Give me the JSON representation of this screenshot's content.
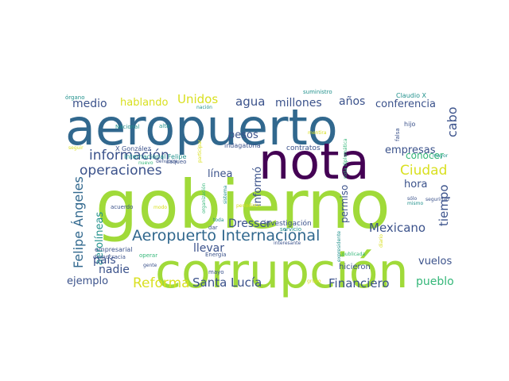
{
  "background": "#ffffff",
  "palette": {
    "dark_purple": "#440154",
    "indigo": "#3b528b",
    "blue": "#31688e",
    "teal": "#21918c",
    "green": "#35b779",
    "lime": "#90d743",
    "yellow": "#d9e021"
  },
  "words": [
    {
      "text": "gobierno",
      "color": "#a0da39"
    },
    {
      "text": "aeropuerto",
      "color": "#31688e"
    },
    {
      "text": "corrupción",
      "color": "#a0da39"
    },
    {
      "text": "nota",
      "color": "#440154"
    },
    {
      "text": "Aeropuerto Internacional",
      "color": "#31688e"
    },
    {
      "text": "información",
      "color": "#3b528b"
    },
    {
      "text": "operaciones",
      "color": "#3b528b"
    },
    {
      "text": "Felipe Ángeles",
      "color": "#31688e"
    },
    {
      "text": "aerolíneas",
      "color": "#21918c"
    },
    {
      "text": "Ciudad",
      "color": "#d9e021"
    },
    {
      "text": "Reforma",
      "color": "#d9e021"
    },
    {
      "text": "Santa Lucía",
      "color": "#3b528b"
    },
    {
      "text": "Financiero",
      "color": "#3b528b"
    },
    {
      "text": "Mexicano",
      "color": "#3b528b"
    },
    {
      "text": "cabo",
      "color": "#3b528b"
    },
    {
      "text": "tiempo",
      "color": "#3b528b"
    },
    {
      "text": "Unidos",
      "color": "#d9e021"
    },
    {
      "text": "hablando",
      "color": "#d9e021"
    },
    {
      "text": "medio",
      "color": "#3b528b"
    },
    {
      "text": "agua",
      "color": "#3b528b"
    },
    {
      "text": "millones",
      "color": "#3b528b"
    },
    {
      "text": "años",
      "color": "#3b528b"
    },
    {
      "text": "conferencia",
      "color": "#3b528b"
    },
    {
      "text": "empresas",
      "color": "#3b528b"
    },
    {
      "text": "hora",
      "color": "#3b528b"
    },
    {
      "text": "conocer",
      "color": "#35b779"
    },
    {
      "text": "pesos",
      "color": "#3b528b"
    },
    {
      "text": "informó",
      "color": "#3b528b"
    },
    {
      "text": "línea",
      "color": "#3b528b"
    },
    {
      "text": "permiso",
      "color": "#3b528b"
    },
    {
      "text": "llevar",
      "color": "#3b528b"
    },
    {
      "text": "Dresser",
      "color": "#3b528b"
    },
    {
      "text": "país",
      "color": "#3b528b"
    },
    {
      "text": "nadie",
      "color": "#3b528b"
    },
    {
      "text": "ejemplo",
      "color": "#3b528b"
    },
    {
      "text": "vuelos",
      "color": "#3b528b"
    },
    {
      "text": "pueblo",
      "color": "#35b779"
    },
    {
      "text": "hicieron",
      "color": "#3b528b"
    },
    {
      "text": "X González",
      "color": "#3b528b"
    },
    {
      "text": "Internacional Felipe",
      "color": "#21918c"
    },
    {
      "text": "contratos",
      "color": "#3b528b"
    },
    {
      "text": "indagatoria",
      "color": "#3b528b"
    },
    {
      "text": "investigación",
      "color": "#3b528b"
    },
    {
      "text": "servicio",
      "color": "#21918c"
    },
    {
      "text": "órgano",
      "color": "#21918c"
    },
    {
      "text": "Nacional",
      "color": "#21918c"
    },
    {
      "text": "alta",
      "color": "#21918c"
    },
    {
      "text": "nación",
      "color": "#21918c"
    },
    {
      "text": "suministro",
      "color": "#21918c"
    },
    {
      "text": "Claudio X",
      "color": "#21918c"
    },
    {
      "text": "hijo",
      "color": "#3b528b"
    },
    {
      "text": "falsa",
      "color": "#3b528b"
    },
    {
      "text": "mentira",
      "color": "#d9e021"
    },
    {
      "text": "seguir",
      "color": "#d9e021"
    },
    {
      "text": "saqueo",
      "color": "#3b528b"
    },
    {
      "text": "denuncia",
      "color": "#3b528b"
    },
    {
      "text": "nuevo",
      "color": "#35b779"
    },
    {
      "text": "participar",
      "color": "#d9e021"
    },
    {
      "text": "organización",
      "color": "#35b779"
    },
    {
      "text": "sistema",
      "color": "#21918c"
    },
    {
      "text": "periodista",
      "color": "#d9e021"
    },
    {
      "text": "nota diplomática",
      "color": "#35b779"
    },
    {
      "text": "expresidente",
      "color": "#21918c"
    },
    {
      "text": "acuerdo",
      "color": "#3b528b"
    },
    {
      "text": "modo",
      "color": "#d9e021"
    },
    {
      "text": "toda",
      "color": "#21918c"
    },
    {
      "text": "dar",
      "color": "#3b528b"
    },
    {
      "text": "empresarial",
      "color": "#3b528b"
    },
    {
      "text": "democracia",
      "color": "#3b528b"
    },
    {
      "text": "operar",
      "color": "#35b779"
    },
    {
      "text": "gente",
      "color": "#3b528b"
    },
    {
      "text": "mayo",
      "color": "#3b528b"
    },
    {
      "text": "Energía",
      "color": "#3b528b"
    },
    {
      "text": "interesante",
      "color": "#3b528b"
    },
    {
      "text": "publicada",
      "color": "#35b779"
    },
    {
      "text": "grupo",
      "color": "#d9e021"
    },
    {
      "text": "diario",
      "color": "#d9e021"
    },
    {
      "text": "mayor",
      "color": "#21918c"
    },
    {
      "text": "seguridad",
      "color": "#3b528b"
    },
    {
      "text": "sólo",
      "color": "#3b528b"
    },
    {
      "text": "mismo",
      "color": "#21918c"
    }
  ]
}
